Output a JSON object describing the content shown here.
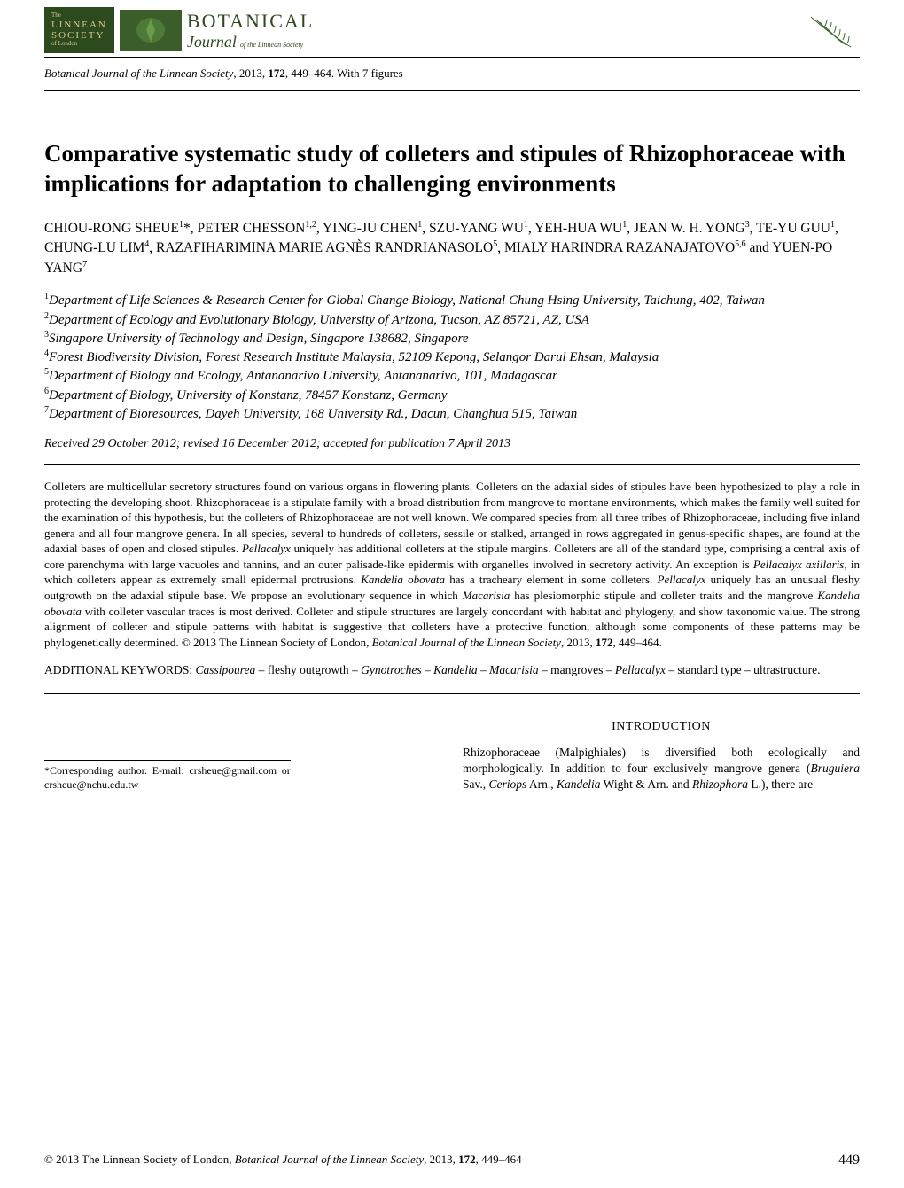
{
  "header": {
    "linnean_line1": "The",
    "linnean_line2": "LINNEAN",
    "linnean_line3": "SOCIETY",
    "linnean_line4": "of London",
    "journal_brand1": "BOTANICAL",
    "journal_brand2": "Journal",
    "journal_brand3": "of the Linnean Society"
  },
  "citation_top": {
    "journal": "Botanical Journal of the Linnean Society",
    "year": ", 2013, ",
    "volume": "172",
    "pages": ", 449–464. With 7 figures"
  },
  "title": "Comparative systematic study of colleters and stipules of Rhizophoraceae with implications for adaptation to challenging environments",
  "authors_html": "CHIOU-RONG SHEUE<sup>1</sup>*, PETER CHESSON<sup>1,2</sup>, YING-JU CHEN<sup>1</sup>, SZU-YANG WU<sup>1</sup>, YEH-HUA WU<sup>1</sup>, JEAN W. H. YONG<sup>3</sup>, TE-YU GUU<sup>1</sup>, CHUNG-LU LIM<sup>4</sup>, RAZAFIHARIMINA MARIE AGNÈS RANDRIANASOLO<sup>5</sup>, MIALY HARINDRA RAZANAJATOVO<sup>5,6</sup> and YUEN-PO YANG<sup>7</sup>",
  "affils": [
    "<sup>1</sup>Department of Life Sciences & Research Center for Global Change Biology, National Chung Hsing University, Taichung, 402, Taiwan",
    "<sup>2</sup>Department of Ecology and Evolutionary Biology, University of Arizona, Tucson, AZ 85721, AZ, USA",
    "<sup>3</sup>Singapore University of Technology and Design, Singapore 138682, Singapore",
    "<sup>4</sup>Forest Biodiversity Division, Forest Research Institute Malaysia, 52109 Kepong, Selangor Darul Ehsan, Malaysia",
    "<sup>5</sup>Department of Biology and Ecology, Antananarivo University, Antananarivo, 101, Madagascar",
    "<sup>6</sup>Department of Biology, University of Konstanz, 78457 Konstanz, Germany",
    "<sup>7</sup>Department of Bioresources, Dayeh University, 168 University Rd., Dacun, Changhua 515, Taiwan"
  ],
  "received": "Received 29 October 2012; revised 16 December 2012; accepted for publication 7 April 2013",
  "abstract": "Colleters are multicellular secretory structures found on various organs in flowering plants. Colleters on the adaxial sides of stipules have been hypothesized to play a role in protecting the developing shoot. Rhizophoraceae is a stipulate family with a broad distribution from mangrove to montane environments, which makes the family well suited for the examination of this hypothesis, but the colleters of Rhizophoraceae are not well known. We compared species from all three tribes of Rhizophoraceae, including five inland genera and all four mangrove genera. In all species, several to hundreds of colleters, sessile or stalked, arranged in rows aggregated in genus-specific shapes, are found at the adaxial bases of open and closed stipules. <span class=\"it\">Pellacalyx</span> uniquely has additional colleters at the stipule margins. Colleters are all of the standard type, comprising a central axis of core parenchyma with large vacuoles and tannins, and an outer palisade-like epidermis with organelles involved in secretory activity. An exception is <span class=\"it\">Pellacalyx axillaris</span>, in which colleters appear as extremely small epidermal protrusions. <span class=\"it\">Kandelia obovata</span> has a tracheary element in some colleters. <span class=\"it\">Pellacalyx</span> uniquely has an unusual fleshy outgrowth on the adaxial stipule base. We propose an evolutionary sequence in which <span class=\"it\">Macarisia</span> has plesiomorphic stipule and colleter traits and the mangrove <span class=\"it\">Kandelia obovata</span> with colleter vascular traces is most derived. Colleter and stipule structures are largely concordant with habitat and phylogeny, and show taxonomic value. The strong alignment of colleter and stipule patterns with habitat is suggestive that colleters have a protective function, although some components of these patterns may be phylogenetically determined.  © 2013 The Linnean Society of London, <span class=\"it\">Botanical Journal of the Linnean Society</span>, 2013, <span class=\"bold\">172</span>, 449–464.",
  "keywords": "ADDITIONAL KEYWORDS: <span class=\"it\">Cassipourea</span> – fleshy outgrowth – <span class=\"it\">Gynotroches</span> – <span class=\"it\">Kandelia</span> – <span class=\"it\">Macarisia</span> – mangroves – <span class=\"it\">Pellacalyx</span> – standard type – ultrastructure.",
  "corresponding": "*Corresponding author. E-mail: crsheue@gmail.com or crsheue@nchu.edu.tw",
  "intro_head": "INTRODUCTION",
  "intro_body": "Rhizophoraceae (Malpighiales) is diversified both ecologically and morphologically. In addition to four exclusively mangrove genera (<span class=\"it\">Bruguiera</span> Sav., <span class=\"it\">Ceriops</span> Arn., <span class=\"it\">Kandelia</span> Wight & Arn. and <span class=\"it\">Rhizophora</span> L.), there are",
  "footer": {
    "copyright": "© 2013 The Linnean Society of London, ",
    "journal": "Botanical Journal of the Linnean Society",
    "rest": ", 2013, ",
    "volume": "172",
    "pages": ", 449–464",
    "page_number": "449"
  },
  "colors": {
    "text": "#000000",
    "background": "#ffffff",
    "logo_bg": "#2d4a1e",
    "logo_text": "#d4c98a",
    "fern": "#3c6b2e"
  }
}
